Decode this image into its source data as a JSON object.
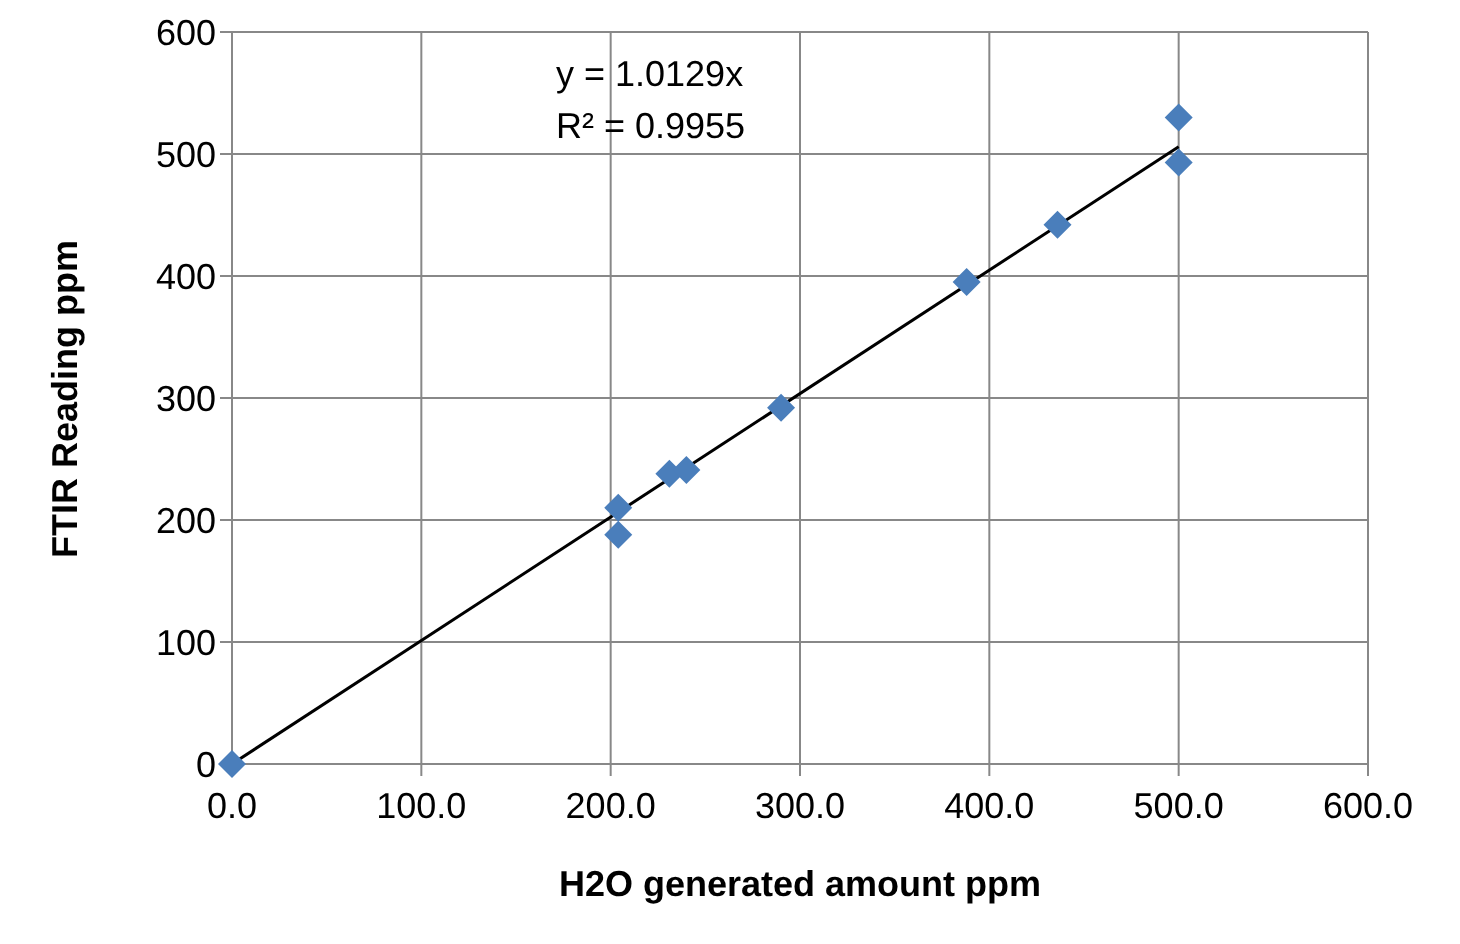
{
  "chart_data": {
    "type": "scatter",
    "xlabel": "H2O generated amount ppm",
    "ylabel": "FTIR Reading ppm",
    "xlim": [
      0,
      600
    ],
    "xticks": [
      {
        "value": 0,
        "label": "0.0"
      },
      {
        "value": 100,
        "label": "100.0"
      },
      {
        "value": 200,
        "label": "200.0"
      },
      {
        "value": 300,
        "label": "300.0"
      },
      {
        "value": 400,
        "label": "400.0"
      },
      {
        "value": 500,
        "label": "500.0"
      },
      {
        "value": 600,
        "label": "600.0"
      }
    ],
    "ylim": [
      0,
      600
    ],
    "yticks": [
      0,
      100,
      200,
      300,
      400,
      500,
      600
    ],
    "grid": true,
    "series": [
      {
        "marker": "diamond",
        "color": "#4a7ebb",
        "x": [
          0,
          204,
          204,
          231,
          240,
          290,
          388,
          436,
          500,
          500
        ],
        "values": [
          0,
          210,
          188,
          238,
          241,
          292,
          395,
          442,
          530,
          493
        ]
      },
      {
        "type": "line",
        "color": "#000000",
        "x": [
          0,
          500
        ],
        "values": [
          0,
          506
        ]
      }
    ],
    "annotations": [
      "y = 1.0129x",
      "R² = 0.9955"
    ]
  }
}
